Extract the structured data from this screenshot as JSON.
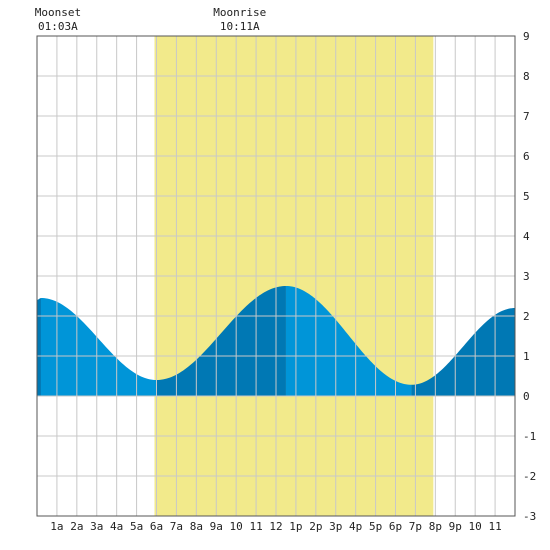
{
  "chart_data": {
    "type": "area",
    "title": "",
    "xlabel": "",
    "ylabel": "",
    "xlim": [
      0,
      24
    ],
    "ylim": [
      -3,
      9
    ],
    "y_ticks": [
      9,
      8,
      7,
      6,
      5,
      4,
      3,
      2,
      1,
      0,
      -1,
      -2,
      -3
    ],
    "x_ticks": [
      {
        "hour": 1,
        "label": "1a"
      },
      {
        "hour": 2,
        "label": "2a"
      },
      {
        "hour": 3,
        "label": "3a"
      },
      {
        "hour": 4,
        "label": "4a"
      },
      {
        "hour": 5,
        "label": "5a"
      },
      {
        "hour": 6,
        "label": "6a"
      },
      {
        "hour": 7,
        "label": "7a"
      },
      {
        "hour": 8,
        "label": "8a"
      },
      {
        "hour": 9,
        "label": "9a"
      },
      {
        "hour": 10,
        "label": "10"
      },
      {
        "hour": 11,
        "label": "11"
      },
      {
        "hour": 12,
        "label": "12"
      },
      {
        "hour": 13,
        "label": "1p"
      },
      {
        "hour": 14,
        "label": "2p"
      },
      {
        "hour": 15,
        "label": "3p"
      },
      {
        "hour": 16,
        "label": "4p"
      },
      {
        "hour": 17,
        "label": "5p"
      },
      {
        "hour": 18,
        "label": "6p"
      },
      {
        "hour": 19,
        "label": "7p"
      },
      {
        "hour": 20,
        "label": "8p"
      },
      {
        "hour": 21,
        "label": "9p"
      },
      {
        "hour": 22,
        "label": "10"
      },
      {
        "hour": 23,
        "label": "11"
      }
    ],
    "grid": true,
    "daylight": {
      "start_hour": 5.9,
      "end_hour": 19.9
    },
    "tide_extrema": [
      {
        "hour": 0.2,
        "height": 2.45
      },
      {
        "hour": 6.0,
        "height": 0.4
      },
      {
        "hour": 12.5,
        "height": 2.75
      },
      {
        "hour": 18.8,
        "height": 0.28
      }
    ],
    "tide_start_height": 2.4,
    "tide_end_height": 2.2,
    "tide_shade_boundaries": [
      0.2,
      6.0,
      12.5,
      18.8
    ],
    "moon_events": [
      {
        "name": "Moonset",
        "time": "01:03A",
        "hour": 1.05
      },
      {
        "name": "Moonrise",
        "time": "10:11A",
        "hour": 10.18
      }
    ],
    "colors": {
      "daylight": "#f2ea8b",
      "tide_light": "#0095d8",
      "tide_dark": "#0078b4",
      "grid": "#c8c8c8",
      "background": "#ffffff"
    }
  }
}
